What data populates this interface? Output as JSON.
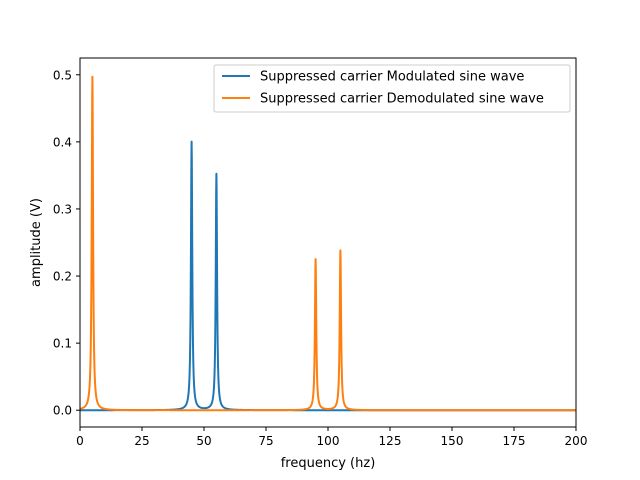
{
  "chart_data": {
    "type": "line",
    "title": "",
    "xlabel": "frequency (hz)",
    "ylabel": "amplitude (V)",
    "xlim": [
      0,
      200
    ],
    "ylim": [
      -0.025,
      0.525
    ],
    "xticks": [
      0,
      25,
      50,
      75,
      100,
      125,
      150,
      175,
      200
    ],
    "xtick_labels": [
      "0",
      "25",
      "50",
      "75",
      "100",
      "125",
      "150",
      "175",
      "200"
    ],
    "yticks": [
      0.0,
      0.1,
      0.2,
      0.3,
      0.4,
      0.5
    ],
    "ytick_labels": [
      "0.0",
      "0.1",
      "0.2",
      "0.3",
      "0.4",
      "0.5"
    ],
    "grid": false,
    "legend_position": "top-right",
    "series": [
      {
        "name": "Suppressed carrier Modulated sine wave",
        "color": "#1f77b4",
        "peaks": [
          {
            "x": 45,
            "y": 0.4
          },
          {
            "x": 55,
            "y": 0.352
          }
        ]
      },
      {
        "name": "Suppressed carrier Demodulated sine wave",
        "color": "#ff7f0e",
        "peaks": [
          {
            "x": 5,
            "y": 0.497
          },
          {
            "x": 95,
            "y": 0.225
          },
          {
            "x": 105,
            "y": 0.238
          }
        ]
      }
    ]
  }
}
